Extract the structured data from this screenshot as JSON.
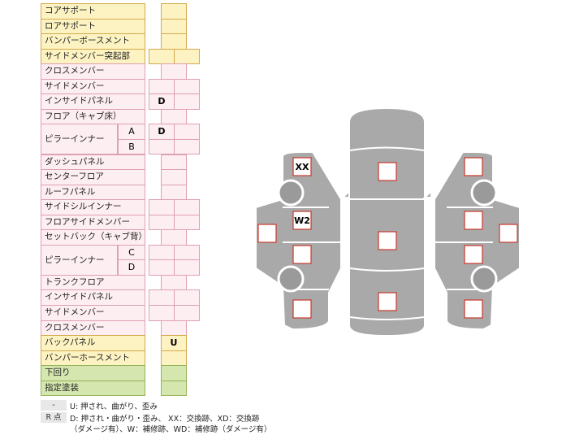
{
  "table": {
    "rows": [
      {
        "label": "コアサポート",
        "cells": [
          null
        ]
      },
      {
        "label": "ロアサポート",
        "cells": [
          null
        ]
      },
      {
        "label": "バンパーボースメント",
        "cells": [
          null
        ]
      },
      {
        "label": "サイドメンバー突起部",
        "cells": [
          null,
          null
        ]
      },
      {
        "label": "クロスメンバー",
        "cells": [
          null
        ]
      },
      {
        "label": "サイドメンバー",
        "cells": [
          null,
          null
        ]
      },
      {
        "label": "インサイドパネル",
        "cells": [
          "D",
          null
        ]
      },
      {
        "label": "フロア（キャブ床）",
        "cells": [
          null
        ]
      },
      {
        "label": "ピラーインナー",
        "parts": [
          {
            "sub": "A",
            "cells": [
              "D",
              null
            ]
          },
          {
            "sub": "B",
            "cells": [
              null,
              null
            ]
          }
        ]
      },
      {
        "label": "ダッシュパネル",
        "cells": [
          null
        ]
      },
      {
        "label": "センターフロア",
        "cells": [
          null
        ]
      },
      {
        "label": "ルーフパネル",
        "cells": [
          null
        ]
      },
      {
        "label": "サイドシルインナー",
        "cells": [
          null,
          null
        ]
      },
      {
        "label": "フロアサイドメンバー",
        "cells": [
          null,
          null
        ]
      },
      {
        "label": "セットバック（キャブ背）",
        "cells": [
          null
        ]
      },
      {
        "label": "ピラーインナー",
        "parts": [
          {
            "sub": "C",
            "cells": [
              null,
              null
            ]
          },
          {
            "sub": "D",
            "cells": [
              null,
              null
            ]
          }
        ]
      },
      {
        "label": "トランクフロア",
        "cells": [
          null
        ]
      },
      {
        "label": "インサイドパネル",
        "cells": [
          null,
          null
        ]
      },
      {
        "label": "サイドメンバー",
        "cells": [
          null,
          null
        ]
      },
      {
        "label": "クロスメンバー",
        "cells": [
          null
        ]
      },
      {
        "label": "バックパネル",
        "cells": [
          "U"
        ]
      },
      {
        "label": "バンパーホースメント",
        "cells": [
          null
        ]
      },
      {
        "label": "下回り",
        "cells": [
          null
        ]
      },
      {
        "label": "指定塗装",
        "cells": [
          null
        ]
      }
    ]
  },
  "diagram": {
    "marks": [
      "XX",
      "W2"
    ]
  },
  "legend": {
    "items": [
      {
        "key": "-",
        "text": "U: 押され、曲がり、歪み"
      },
      {
        "key": "R 点",
        "text": "D: 押され・曲がり・歪み、 XX：交換跡、XD：交換跡"
      }
    ],
    "note": "（ダメージ有）、W：補修跡、WD：補修跡（ダメージ有）"
  }
}
